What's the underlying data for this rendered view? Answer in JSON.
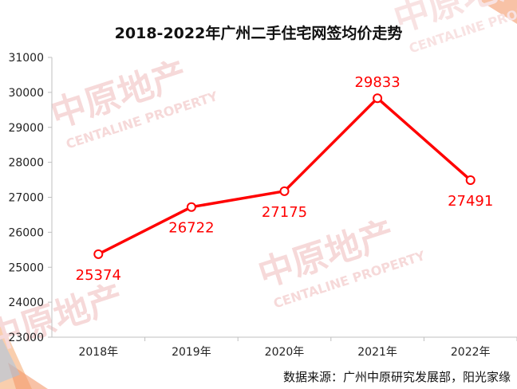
{
  "chart_data": {
    "type": "line",
    "title": "2018-2022年广州二手住宅网签均价走势",
    "categories": [
      "2018年",
      "2019年",
      "2020年",
      "2021年",
      "2022年"
    ],
    "series": [
      {
        "values": [
          25374,
          26722,
          27175,
          29833,
          27491
        ]
      }
    ],
    "ylim": [
      23000,
      31000
    ],
    "yticks": [
      "23000",
      "24000",
      "25000",
      "26000",
      "27000",
      "28000",
      "29000",
      "30000",
      "31000"
    ],
    "data_labels": [
      "25374",
      "26722",
      "27175",
      "29833",
      "27491"
    ],
    "line_color": "#ff0000",
    "label_color": "#ff0000",
    "grid": false,
    "legend": "none",
    "source": "数据来源：广州中原研究发展部，阳光家缘"
  },
  "watermark": {
    "brand": "中原地产",
    "brand_en": "CENTALINE PROPERTY",
    "color": "#f3c9c9"
  }
}
